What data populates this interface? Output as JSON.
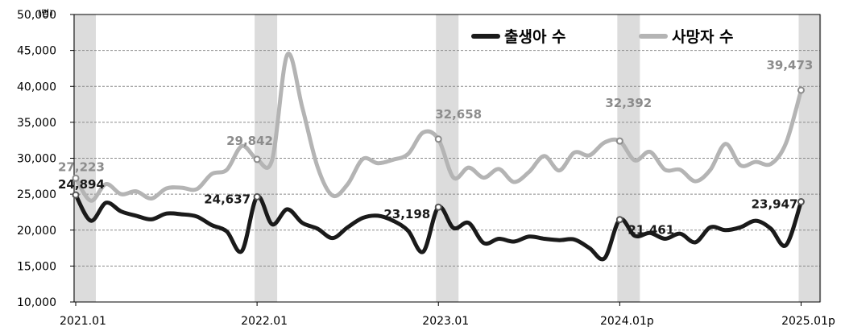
{
  "chart_data": {
    "type": "line",
    "unit_label": "(명)",
    "y_ticks": [
      10000,
      15000,
      20000,
      25000,
      30000,
      35000,
      40000,
      45000,
      50000
    ],
    "y_tick_labels": [
      "10,000",
      "15,000",
      "20,000",
      "25,000",
      "30,000",
      "35,000",
      "40,000",
      "45,000",
      "50,000"
    ],
    "ylim": [
      10000,
      50000
    ],
    "x_ticks": [
      {
        "month": 1,
        "label": "2021.01"
      },
      {
        "month": 13,
        "label": "2022.01"
      },
      {
        "month": 25,
        "label": "2023.01"
      },
      {
        "month": 37,
        "label": "2024.01p"
      },
      {
        "month": 49,
        "label": "2025.01p"
      }
    ],
    "highlight_months": [
      1,
      13,
      25,
      37,
      49
    ],
    "grid": "horizontal-dashed",
    "legend_position": "top-right",
    "series": [
      {
        "name": "출생아 수",
        "color": "#1a1a1a",
        "values": [
          24894,
          21300,
          23800,
          22600,
          22000,
          21500,
          22300,
          22200,
          21900,
          20700,
          19800,
          17100,
          24637,
          20800,
          22900,
          21000,
          20200,
          18900,
          20400,
          21700,
          22000,
          21300,
          19900,
          17000,
          23198,
          20300,
          21000,
          18200,
          18800,
          18400,
          19100,
          18800,
          18600,
          18700,
          17500,
          16100,
          21461,
          19200,
          19600,
          18800,
          19500,
          18300,
          20400,
          20000,
          20400,
          21300,
          20200,
          17900,
          23947
        ],
        "labels": [
          {
            "month": 1,
            "text": "24,894"
          },
          {
            "month": 13,
            "text": "24,637"
          },
          {
            "month": 25,
            "text": "23,198"
          },
          {
            "month": 37,
            "text": "21,461"
          },
          {
            "month": 49,
            "text": "23,947"
          }
        ]
      },
      {
        "name": "사망자 수",
        "color": "#b4b4b4",
        "values": [
          27223,
          24100,
          26400,
          25000,
          25400,
          24400,
          25800,
          25900,
          25700,
          27800,
          28400,
          31700,
          29842,
          29800,
          44400,
          37000,
          28800,
          24800,
          26400,
          29900,
          29300,
          29800,
          30600,
          33600,
          32658,
          27300,
          28700,
          27300,
          28500,
          26700,
          28100,
          30300,
          28300,
          30800,
          30400,
          32200,
          32392,
          29700,
          30900,
          28400,
          28400,
          26800,
          28400,
          32000,
          29000,
          29500,
          29200,
          32100,
          39473
        ],
        "labels": [
          {
            "month": 1,
            "text": "27,223"
          },
          {
            "month": 13,
            "text": "29,842"
          },
          {
            "month": 25,
            "text": "32,658"
          },
          {
            "month": 37,
            "text": "32,392"
          },
          {
            "month": 49,
            "text": "39,473"
          }
        ]
      }
    ]
  }
}
